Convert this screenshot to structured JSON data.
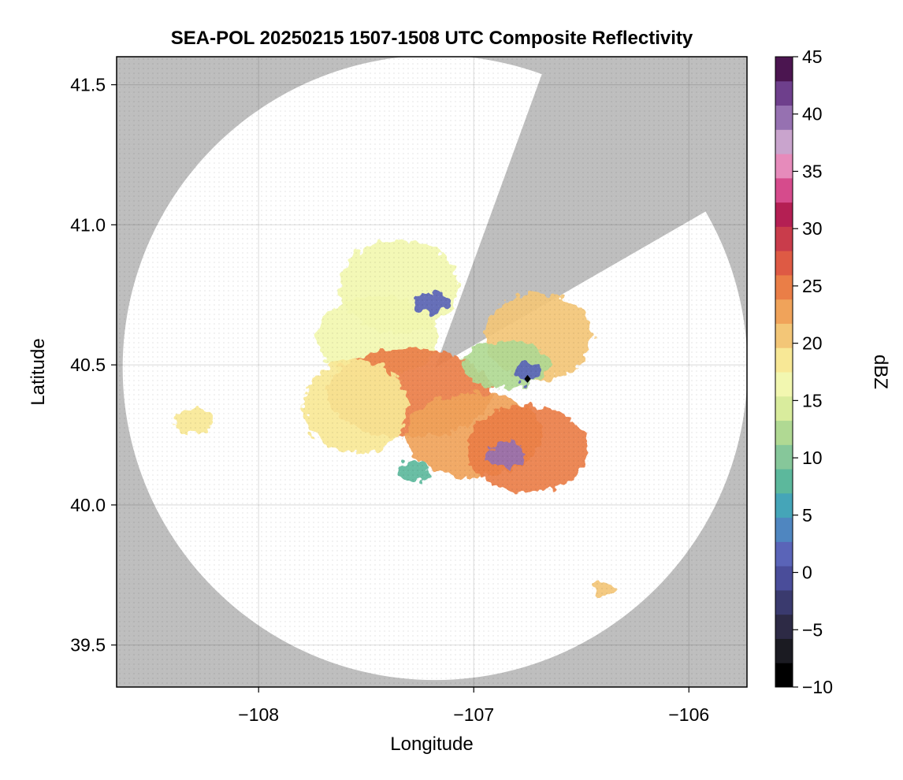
{
  "chart_data": {
    "type": "heatmap",
    "title": "SEA-POL 20250215 1507-1508 UTC Composite Reflectivity",
    "xlabel": "Longitude",
    "ylabel": "Latitude",
    "xlim": [
      -108.66,
      -105.73
    ],
    "ylim": [
      39.35,
      41.6
    ],
    "x_ticks": [
      -108,
      -107,
      -106
    ],
    "x_tick_labels": [
      "−108",
      "−107",
      "−106"
    ],
    "y_ticks": [
      39.5,
      40.0,
      40.5,
      41.0,
      41.5
    ],
    "y_tick_labels": [
      "39.5",
      "40.0",
      "40.5",
      "41.0",
      "41.5"
    ],
    "grid": true,
    "background_color": "#bebebe",
    "radar": {
      "center_lon": -107.18,
      "center_lat": 40.49,
      "coverage_edge_lat_south": 39.375,
      "coverage_edge_lat_north": 41.53,
      "blocked_sector_azimuth_deg": [
        20,
        60
      ]
    },
    "colorbar": {
      "label": "dBZ",
      "min": -10,
      "max": 45,
      "step": 2.5,
      "ticks": [
        -10,
        -5,
        0,
        5,
        10,
        15,
        20,
        25,
        30,
        35,
        40,
        45
      ],
      "tick_labels": [
        "−10",
        "−5",
        "0",
        "5",
        "10",
        "15",
        "20",
        "25",
        "30",
        "35",
        "40",
        "45"
      ],
      "colormap": "spectral-magma",
      "colors": [
        "#000000",
        "#1b1b22",
        "#2d2a45",
        "#3a3a6e",
        "#4a4d9a",
        "#5a64b8",
        "#4f86c0",
        "#45a5b8",
        "#5cb89c",
        "#86c79a",
        "#b0d993",
        "#d9ec9d",
        "#f2f7b0",
        "#f8e896",
        "#f3c677",
        "#f0a35a",
        "#ea7e47",
        "#de5a44",
        "#c93c4b",
        "#b41f53",
        "#d64b8c",
        "#e68bbb",
        "#c9a4cd",
        "#9671b1",
        "#6e3f8c",
        "#4b1550"
      ]
    },
    "marker": {
      "lon": -106.75,
      "lat": 40.45,
      "shape": "diamond",
      "color": "#000000"
    },
    "echo_regions": [
      {
        "lon": -107.45,
        "lat": 40.6,
        "value": 17
      },
      {
        "lon": -107.35,
        "lat": 40.78,
        "value": 16
      },
      {
        "lon": -107.3,
        "lat": 40.4,
        "value": 24
      },
      {
        "lon": -107.55,
        "lat": 40.35,
        "value": 19
      },
      {
        "lon": -107.0,
        "lat": 40.25,
        "value": 23
      },
      {
        "lon": -106.75,
        "lat": 40.2,
        "value": 25
      },
      {
        "lon": -106.85,
        "lat": 40.18,
        "value": 40
      },
      {
        "lon": -106.7,
        "lat": 40.6,
        "value": 21
      },
      {
        "lon": -106.85,
        "lat": 40.5,
        "value": 12
      },
      {
        "lon": -106.75,
        "lat": 40.47,
        "value": 1
      },
      {
        "lon": -107.2,
        "lat": 40.72,
        "value": 2
      },
      {
        "lon": -107.28,
        "lat": 40.12,
        "value": 8
      },
      {
        "lon": -108.3,
        "lat": 40.3,
        "value": 19
      },
      {
        "lon": -106.4,
        "lat": 39.7,
        "value": 20
      }
    ]
  }
}
